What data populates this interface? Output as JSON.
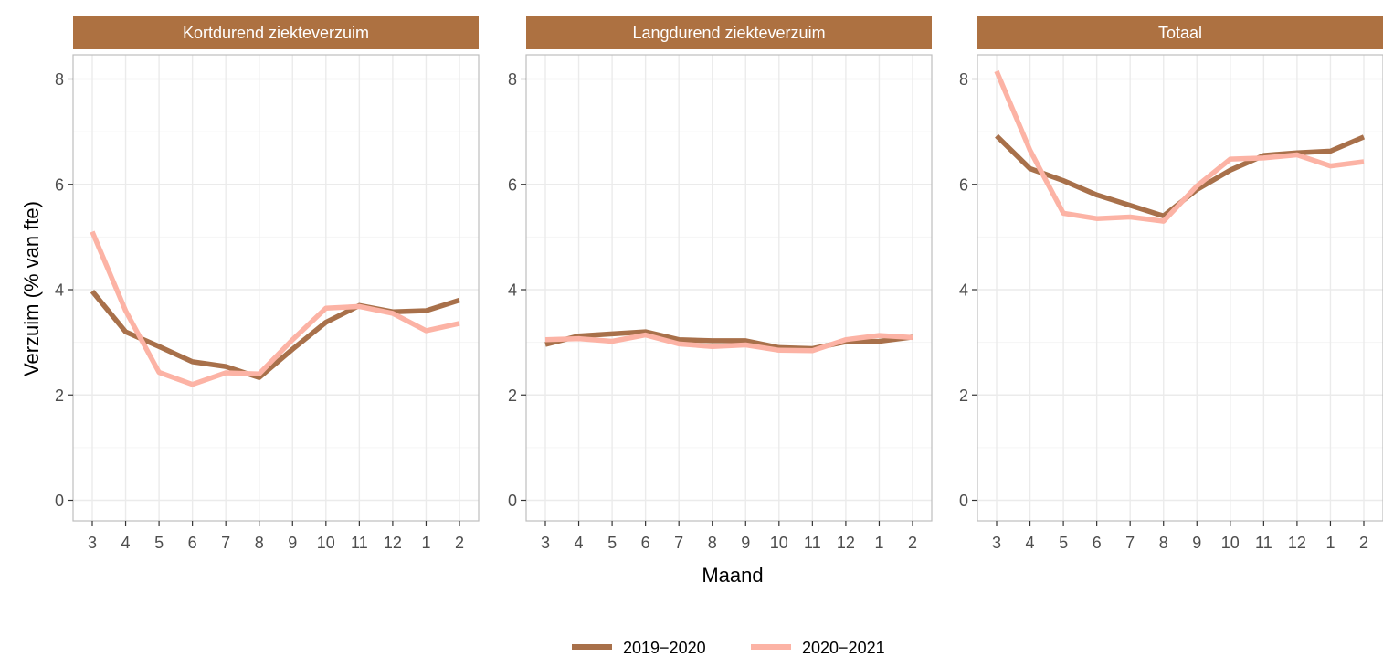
{
  "colors": {
    "strip": "#AD7141",
    "series_2019_2020": "#A8704A",
    "series_2020_2021": "#FCB3A5",
    "grid_major": "#EBEBEB",
    "grid_minor": "#F5F5F5",
    "panel_border": "#BDBDBD"
  },
  "chart_data": {
    "type": "line",
    "xlabel": "Maand",
    "ylabel": "Verzuim (% van fte)",
    "x": [
      "3",
      "4",
      "5",
      "6",
      "7",
      "8",
      "9",
      "10",
      "11",
      "12",
      "1",
      "2"
    ],
    "ylim": [
      0,
      8
    ],
    "yticks": [
      "0",
      "2",
      "4",
      "6",
      "8"
    ],
    "grid": true,
    "legend_position": "bottom",
    "series_names": [
      "2019−2020",
      "2020−2021"
    ],
    "panels": [
      {
        "title": "Kortdurend ziekteverzuim",
        "series": [
          {
            "name": "2019−2020",
            "values": [
              3.97,
              3.2,
              2.92,
              2.63,
              2.54,
              2.33,
              2.87,
              3.38,
              3.7,
              3.58,
              3.6,
              3.8
            ]
          },
          {
            "name": "2020−2021",
            "values": [
              5.1,
              3.6,
              2.43,
              2.2,
              2.42,
              2.4,
              3.05,
              3.65,
              3.68,
              3.55,
              3.22,
              3.36
            ]
          }
        ]
      },
      {
        "title": "Langdurend ziekteverzuim",
        "series": [
          {
            "name": "2019−2020",
            "values": [
              2.96,
              3.12,
              3.16,
              3.2,
              3.05,
              3.03,
              3.03,
              2.9,
              2.88,
              3.01,
              3.02,
              3.1
            ]
          },
          {
            "name": "2020−2021",
            "values": [
              3.05,
              3.07,
              3.02,
              3.14,
              2.97,
              2.92,
              2.95,
              2.85,
              2.84,
              3.05,
              3.13,
              3.09
            ]
          }
        ]
      },
      {
        "title": "Totaal",
        "series": [
          {
            "name": "2019−2020",
            "values": [
              6.92,
              6.3,
              6.07,
              5.8,
              5.6,
              5.4,
              5.9,
              6.27,
              6.55,
              6.6,
              6.63,
              6.9
            ]
          },
          {
            "name": "2020−2021",
            "values": [
              8.15,
              6.65,
              5.45,
              5.35,
              5.38,
              5.3,
              5.97,
              6.48,
              6.5,
              6.56,
              6.35,
              6.43
            ]
          }
        ]
      }
    ]
  }
}
